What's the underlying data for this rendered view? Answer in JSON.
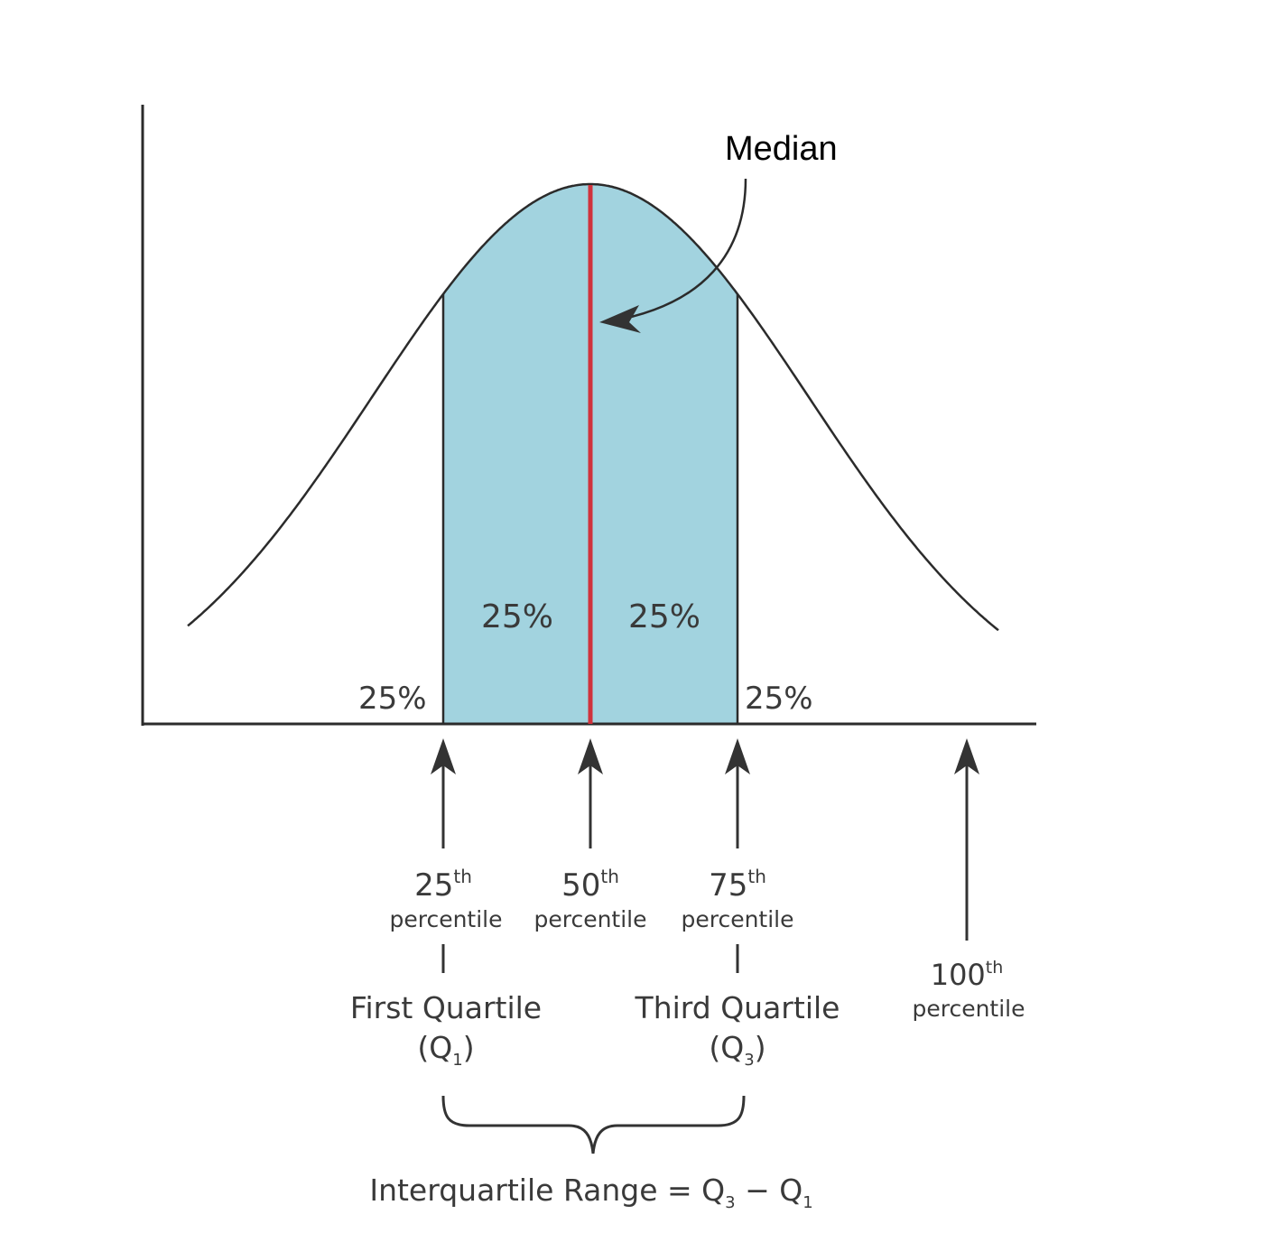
{
  "colors": {
    "curve": "#2b2b2b",
    "fill": "#a2d3df",
    "median_line": "#d0323c",
    "text": "#3a3a3a",
    "arrow": "#333333"
  },
  "annotation": {
    "median": "Median"
  },
  "areas": {
    "left_tail": "25%",
    "inner_left": "25%",
    "inner_right": "25%",
    "right_tail": "25%"
  },
  "markers": {
    "p25": {
      "num": "25",
      "sup": "th",
      "word": "percentile"
    },
    "p50": {
      "num": "50",
      "sup": "th",
      "word": "percentile"
    },
    "p75": {
      "num": "75",
      "sup": "th",
      "word": "percentile"
    },
    "p100": {
      "num": "100",
      "sup": "th",
      "word": "percentile"
    }
  },
  "quartiles": {
    "q1": {
      "name": "First Quartile",
      "open": "(Q",
      "sub": "1",
      "close": ")"
    },
    "q3": {
      "name": "Third Quartile",
      "open": "(Q",
      "sub": "3",
      "close": ")"
    }
  },
  "formula": {
    "lead": "Interquartile Range = Q",
    "sub1": "3",
    "mid": " − Q",
    "sub2": "1"
  }
}
